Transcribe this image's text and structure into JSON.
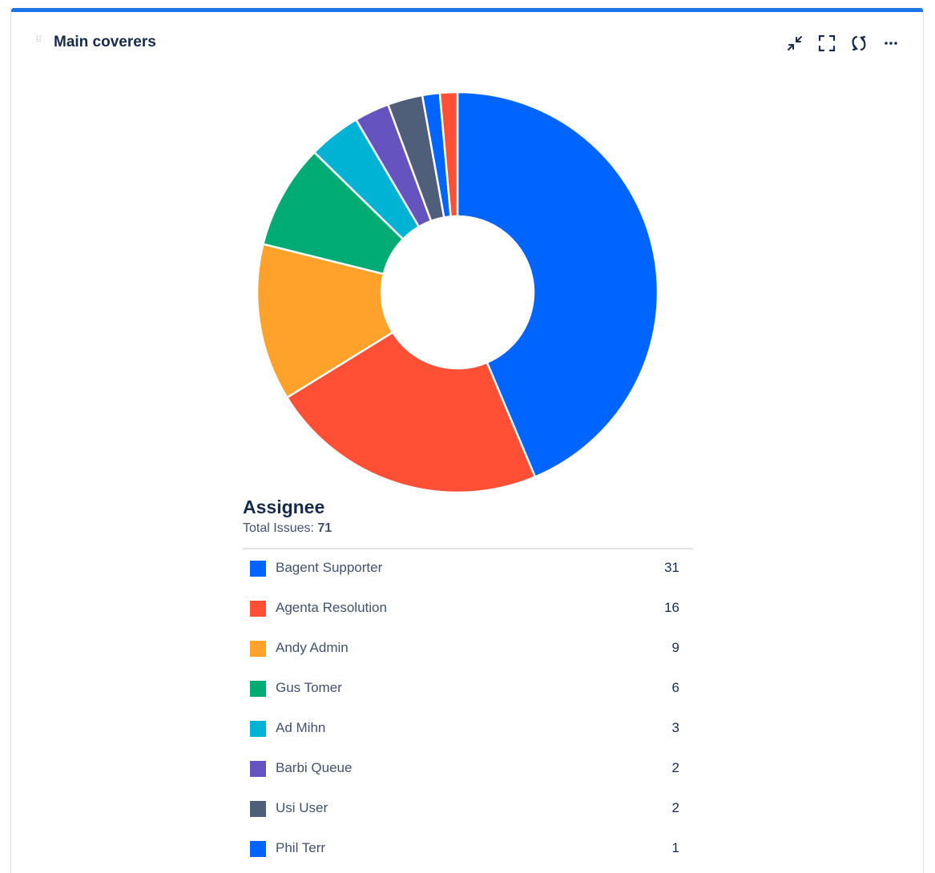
{
  "gadget": {
    "title": "Main coverers",
    "accent_color": "#1a73e8",
    "tools": [
      {
        "name": "minimize-icon"
      },
      {
        "name": "fullscreen-icon"
      },
      {
        "name": "refresh-icon"
      },
      {
        "name": "more-icon"
      }
    ]
  },
  "chart_data": {
    "type": "pie",
    "donut": true,
    "title": "Assignee",
    "total_label": "Total Issues:",
    "total": "71",
    "categories": [
      "Bagent Supporter",
      "Agenta Resolution",
      "Andy Admin",
      "Gus Tomer",
      "Ad Mihn",
      "Barbi Queue",
      "Usi User",
      "Phil Terr",
      ""
    ],
    "values": [
      31,
      16,
      9,
      6,
      3,
      2,
      2,
      1,
      1
    ],
    "colors": [
      "#0065ff",
      "#ff5035",
      "#ffa22b",
      "#00ac74",
      "#00b2d4",
      "#6554c0",
      "#505f79",
      "#0065ff",
      "#ff5035"
    ],
    "legend_placement": "bottom"
  }
}
